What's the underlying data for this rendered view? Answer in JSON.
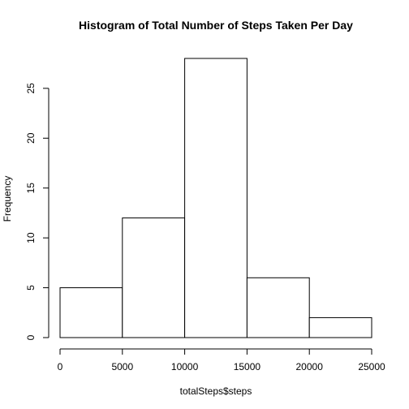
{
  "chart_data": {
    "type": "bar",
    "title": "Histogram of Total Number of Steps Taken Per Day",
    "xlabel": "totalSteps$steps",
    "ylabel": "Frequency",
    "bins": [
      {
        "from": 0,
        "to": 5000,
        "count": 5
      },
      {
        "from": 5000,
        "to": 10000,
        "count": 12
      },
      {
        "from": 10000,
        "to": 15000,
        "count": 28
      },
      {
        "from": 15000,
        "to": 20000,
        "count": 6
      },
      {
        "from": 20000,
        "to": 25000,
        "count": 2
      }
    ],
    "xlim": [
      0,
      25000
    ],
    "ylim": [
      0,
      28
    ],
    "xticks": [
      0,
      5000,
      10000,
      15000,
      20000,
      25000
    ],
    "yticks": [
      0,
      5,
      10,
      15,
      20,
      25
    ],
    "grid": false,
    "colors": {
      "bar_fill": "#ffffff",
      "bar_stroke": "#000000"
    }
  }
}
